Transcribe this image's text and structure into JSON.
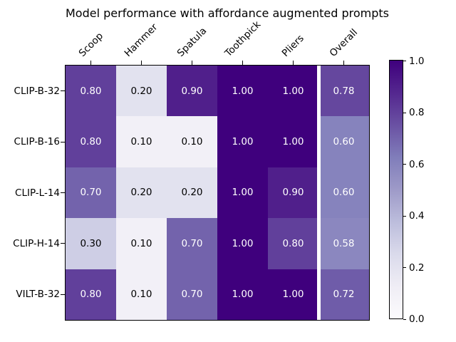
{
  "title": "Model performance with affordance augmented prompts",
  "chart_data": {
    "type": "heatmap",
    "title": "Model performance with affordance augmented prompts",
    "columns": [
      "Scoop",
      "Hammer",
      "Spatula",
      "Toothpick",
      "Pliers",
      "Overall"
    ],
    "rows": [
      "CLIP-B-32",
      "CLIP-B-16",
      "CLIP-L-14",
      "CLIP-H-14",
      "VILT-B-32"
    ],
    "values": [
      [
        0.8,
        0.2,
        0.9,
        1.0,
        1.0,
        0.78
      ],
      [
        0.8,
        0.1,
        0.1,
        1.0,
        1.0,
        0.6
      ],
      [
        0.7,
        0.2,
        0.2,
        1.0,
        0.9,
        0.6
      ],
      [
        0.3,
        0.1,
        0.7,
        1.0,
        0.8,
        0.58
      ],
      [
        0.8,
        0.1,
        0.7,
        1.0,
        1.0,
        0.72
      ]
    ],
    "value_decimals": 2,
    "value_range": [
      0.0,
      1.0
    ],
    "colormap": {
      "name": "Purples",
      "stops": [
        "#fcfbfd",
        "#efedf5",
        "#dadaeb",
        "#bcbddc",
        "#9e9ac8",
        "#807dba",
        "#6a51a3",
        "#54278f",
        "#3f007d"
      ]
    },
    "cell_text_colors": {
      "dark_cells": "#ffffff",
      "light_cells": "#000000",
      "threshold": 0.5
    },
    "separator_after_column": "Pliers",
    "colorbar": {
      "min": 0.0,
      "max": 1.0,
      "tick_labels": [
        "0.0",
        "0.2",
        "0.4",
        "0.6",
        "0.8",
        "1.0"
      ],
      "orientation": "vertical"
    },
    "legend_position": "right",
    "grid": false
  }
}
